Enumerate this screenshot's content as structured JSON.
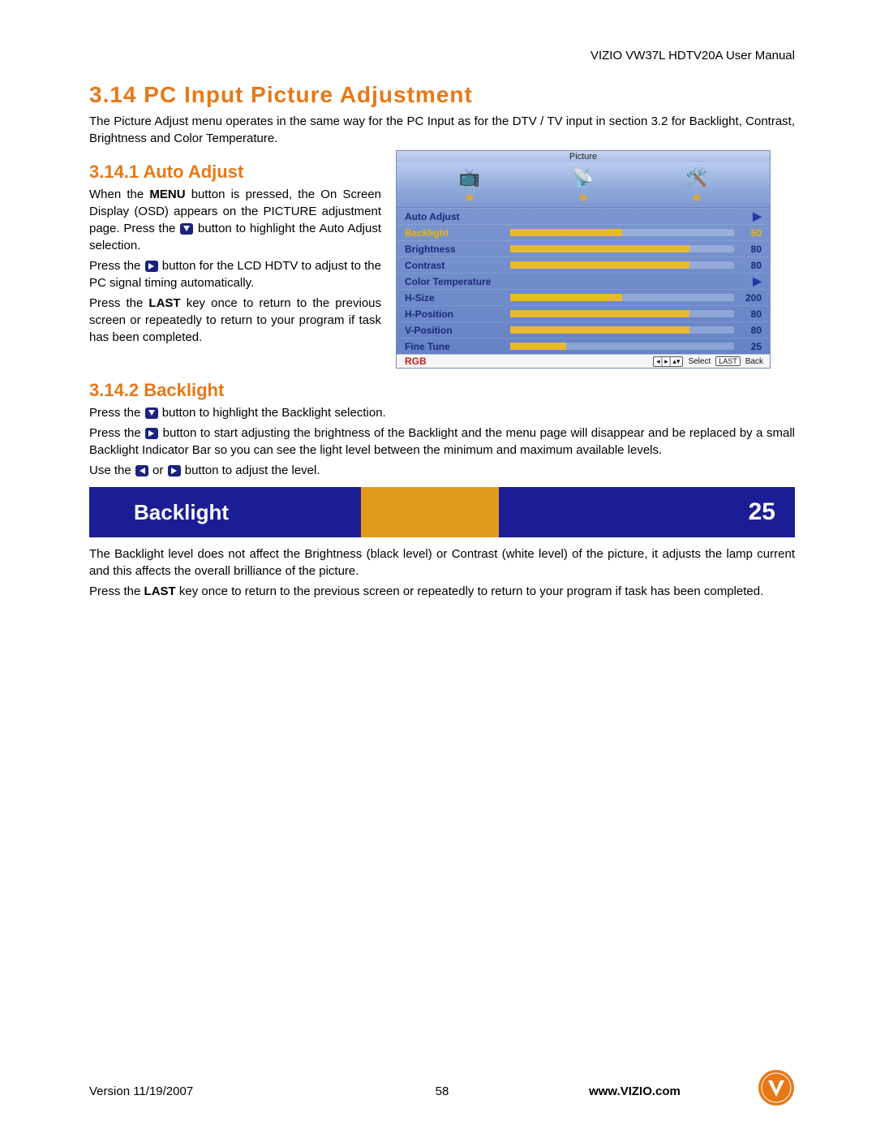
{
  "header": {
    "manual": "VIZIO VW37L HDTV20A User Manual"
  },
  "section": {
    "number": "3.14",
    "title": "PC Input Picture Adjustment",
    "intro": "The Picture Adjust menu operates in the same way for the PC Input as for the DTV / TV input in section 3.2 for Backlight, Contrast, Brightness and Color Temperature."
  },
  "s1": {
    "number": "3.14.1",
    "title": "Auto Adjust",
    "p1a": "When the ",
    "p1b_bold": "MENU",
    "p1c": " button is pressed, the On Screen Display (OSD) appears on the PICTURE adjustment page.  Press the ",
    "p1d": " button to highlight the Auto Adjust selection.",
    "p2a": "Press the ",
    "p2b": " button for the LCD HDTV to adjust to the PC signal timing automatically.",
    "p3a": "Press the ",
    "p3b_bold": "LAST",
    "p3c": " key once to return to the previous screen or repeatedly to return to your program if task has been completed."
  },
  "s2": {
    "number": "3.14.2",
    "title": "Backlight",
    "p1a": "Press the ",
    "p1b": " button to highlight the Backlight selection.",
    "p2a": "Press the ",
    "p2b": " button to start adjusting the brightness of the Backlight and the menu page will disappear and be replaced by a small Backlight Indicator Bar so you can see the light level between the minimum and maximum available levels.",
    "p3a": "Use the ",
    "p3b": " or ",
    "p3c": " button to adjust the level.",
    "p4": "The Backlight level does not affect the Brightness (black level) or Contrast (white level) of the picture, it adjusts the lamp current and this affects the overall brilliance of the picture.",
    "p5a": "Press the ",
    "p5b_bold": "LAST",
    "p5c": " key once to return to the previous screen or repeatedly to return to your program if task has been completed."
  },
  "osd": {
    "title": "Picture",
    "rows": [
      {
        "label": "Auto Adjust",
        "type": "arrow"
      },
      {
        "label": "Backlight",
        "type": "bar",
        "value": 50,
        "max": 100,
        "highlight": true
      },
      {
        "label": "Brightness",
        "type": "bar",
        "value": 80,
        "max": 100
      },
      {
        "label": "Contrast",
        "type": "bar",
        "value": 80,
        "max": 100
      },
      {
        "label": "Color Temperature",
        "type": "arrow"
      },
      {
        "label": "H-Size",
        "type": "bar",
        "value": 200,
        "max": 400
      },
      {
        "label": "H-Position",
        "type": "bar",
        "value": 80,
        "max": 100
      },
      {
        "label": "V-Position",
        "type": "bar",
        "value": 80,
        "max": 100
      },
      {
        "label": "Fine Tune",
        "type": "bar",
        "value": 25,
        "max": 100
      }
    ],
    "rgb": "RGB",
    "footer": {
      "nav_key": "◂│▸│▴▾",
      "select": "Select",
      "last_key": "LAST",
      "back": "Back"
    },
    "colors": {
      "bg_top": "#b9cbef",
      "bg_rows": "#6f8ccb",
      "bar_fill": "#e8b82e",
      "text": "#1a2a7a",
      "highlight_text": "#f0b400"
    }
  },
  "backlight_bar": {
    "label": "Backlight",
    "value": 25,
    "fill_percent": 38,
    "bg_color": "#1a1d94",
    "fill_color": "#e29a1f",
    "text_color": "#ffffff"
  },
  "footer": {
    "version": "Version 11/19/2007",
    "page": "58",
    "url": "www.VIZIO.com"
  },
  "icons": {
    "down": "down-arrow-icon",
    "right": "right-arrow-icon",
    "left": "left-arrow-icon"
  }
}
